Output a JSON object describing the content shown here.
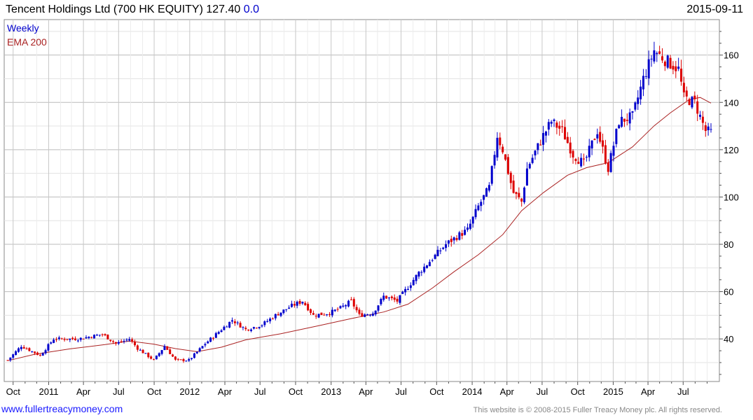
{
  "header": {
    "title": "Tencent Holdings Ltd (700 HK EQUITY) 127.40",
    "change": "0.0",
    "date": "2015-09-11"
  },
  "footer": {
    "url": "www.fullertreacymoney.com",
    "copyright": "This website is © 2008-2015 Fuller Treacy Money plc. All rights reserved."
  },
  "chart_data": {
    "type": "candlestick",
    "interval": "Weekly",
    "ylim": [
      22,
      175
    ],
    "yticks": [
      40,
      60,
      80,
      100,
      120,
      140,
      160
    ],
    "x_range": [
      "2010-09-17",
      "2015-09-11"
    ],
    "xticks": [
      {
        "label": "Oct",
        "date": "2010-10-01"
      },
      {
        "label": "2011",
        "date": "2011-01-01"
      },
      {
        "label": "Apr",
        "date": "2011-04-01"
      },
      {
        "label": "Jul",
        "date": "2011-07-01"
      },
      {
        "label": "Oct",
        "date": "2011-10-01"
      },
      {
        "label": "2012",
        "date": "2012-01-01"
      },
      {
        "label": "Apr",
        "date": "2012-04-01"
      },
      {
        "label": "Jul",
        "date": "2012-07-01"
      },
      {
        "label": "Oct",
        "date": "2012-10-01"
      },
      {
        "label": "2013",
        "date": "2013-01-01"
      },
      {
        "label": "Apr",
        "date": "2013-04-01"
      },
      {
        "label": "Jul",
        "date": "2013-07-01"
      },
      {
        "label": "Oct",
        "date": "2013-10-01"
      },
      {
        "label": "2014",
        "date": "2014-01-01"
      },
      {
        "label": "Apr",
        "date": "2014-04-01"
      },
      {
        "label": "Jul",
        "date": "2014-07-01"
      },
      {
        "label": "Oct",
        "date": "2014-10-01"
      },
      {
        "label": "2015",
        "date": "2015-01-01"
      },
      {
        "label": "Apr",
        "date": "2015-04-01"
      },
      {
        "label": "Jul",
        "date": "2015-07-01"
      }
    ],
    "grid": true,
    "legend_position": "top-left",
    "series": [
      {
        "name": "Weekly",
        "kind": "candlestick",
        "up_color": "#0000cc",
        "down_color": "#dd0000",
        "close_anchors": [
          [
            "2010-09-17",
            31
          ],
          [
            "2010-10-22",
            37
          ],
          [
            "2010-12-10",
            33
          ],
          [
            "2011-01-14",
            40
          ],
          [
            "2011-03-18",
            40
          ],
          [
            "2011-05-20",
            42
          ],
          [
            "2011-06-24",
            38
          ],
          [
            "2011-07-29",
            40
          ],
          [
            "2011-08-19",
            36
          ],
          [
            "2011-09-30",
            31
          ],
          [
            "2011-10-28",
            37
          ],
          [
            "2011-11-25",
            31
          ],
          [
            "2011-12-30",
            31
          ],
          [
            "2012-02-10",
            38
          ],
          [
            "2012-03-23",
            44
          ],
          [
            "2012-04-20",
            48
          ],
          [
            "2012-05-25",
            44
          ],
          [
            "2012-07-06",
            46
          ],
          [
            "2012-08-10",
            50
          ],
          [
            "2012-09-21",
            54
          ],
          [
            "2012-10-19",
            56
          ],
          [
            "2012-11-16",
            50
          ],
          [
            "2012-12-28",
            51
          ],
          [
            "2013-01-25",
            53
          ],
          [
            "2013-02-22",
            56
          ],
          [
            "2013-03-15",
            50
          ],
          [
            "2013-04-19",
            51
          ],
          [
            "2013-05-17",
            58
          ],
          [
            "2013-06-21",
            56
          ],
          [
            "2013-07-19",
            62
          ],
          [
            "2013-08-16",
            68
          ],
          [
            "2013-09-20",
            74
          ],
          [
            "2013-10-25",
            80
          ],
          [
            "2013-11-29",
            84
          ],
          [
            "2013-12-20",
            86
          ],
          [
            "2014-01-17",
            96
          ],
          [
            "2014-02-14",
            104
          ],
          [
            "2014-03-07",
            126
          ],
          [
            "2014-03-21",
            120
          ],
          [
            "2014-04-17",
            102
          ],
          [
            "2014-05-09",
            98
          ],
          [
            "2014-05-23",
            112
          ],
          [
            "2014-07-04",
            126
          ],
          [
            "2014-07-25",
            132
          ],
          [
            "2014-08-22",
            128
          ],
          [
            "2014-09-19",
            118
          ],
          [
            "2014-10-17",
            114
          ],
          [
            "2014-11-21",
            128
          ],
          [
            "2014-12-19",
            112
          ],
          [
            "2015-01-16",
            132
          ],
          [
            "2015-02-20",
            134
          ],
          [
            "2015-03-20",
            150
          ],
          [
            "2015-04-17",
            162
          ],
          [
            "2015-05-15",
            158
          ],
          [
            "2015-06-19",
            154
          ],
          [
            "2015-07-03",
            142
          ],
          [
            "2015-07-31",
            140
          ],
          [
            "2015-08-28",
            128
          ],
          [
            "2015-09-11",
            127.4
          ]
        ]
      },
      {
        "name": "EMA 200",
        "kind": "line",
        "color": "#aa2222",
        "points": [
          [
            "2010-09-17",
            30.8
          ],
          [
            "2010-11-26",
            33.5
          ],
          [
            "2011-02-25",
            35.8
          ],
          [
            "2011-05-27",
            37.6
          ],
          [
            "2011-07-29",
            39.1
          ],
          [
            "2011-09-30",
            37.8
          ],
          [
            "2011-11-25",
            35.9
          ],
          [
            "2012-01-20",
            34.6
          ],
          [
            "2012-03-23",
            36.5
          ],
          [
            "2012-05-25",
            39.6
          ],
          [
            "2012-08-24",
            42.2
          ],
          [
            "2012-11-30",
            45.6
          ],
          [
            "2013-02-22",
            48.6
          ],
          [
            "2013-05-17",
            51.4
          ],
          [
            "2013-07-19",
            54.7
          ],
          [
            "2013-09-20",
            61.5
          ],
          [
            "2013-11-15",
            68.4
          ],
          [
            "2014-01-17",
            75.6
          ],
          [
            "2014-03-21",
            84.1
          ],
          [
            "2014-05-09",
            94.2
          ],
          [
            "2014-07-04",
            101.8
          ],
          [
            "2014-09-05",
            109.2
          ],
          [
            "2014-10-24",
            112.4
          ],
          [
            "2014-12-19",
            114.5
          ],
          [
            "2015-02-20",
            121.2
          ],
          [
            "2015-04-17",
            130.1
          ],
          [
            "2015-05-29",
            135.6
          ],
          [
            "2015-07-17",
            141.2
          ],
          [
            "2015-08-14",
            142.1
          ],
          [
            "2015-09-11",
            139.7
          ]
        ]
      }
    ]
  }
}
